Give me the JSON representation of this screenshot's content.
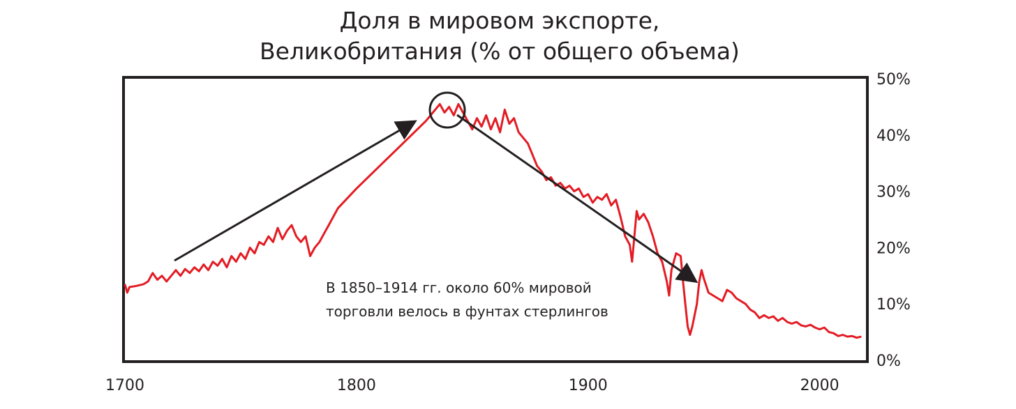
{
  "chart_data": {
    "type": "line",
    "title": "Доля в мировом экспорте,",
    "subtitle": "Великобритания (% от общего объема)",
    "xlabel": "",
    "ylabel": "",
    "xlim": [
      1700,
      2020
    ],
    "ylim": [
      0,
      50
    ],
    "x_ticks": [
      1700,
      1800,
      1900,
      2000
    ],
    "y_ticks": [
      "0%",
      "10%",
      "20%",
      "30%",
      "40%",
      "50%"
    ],
    "y_axis_position": "right",
    "grid": false,
    "line_color": "#e31b23",
    "annotation_color": "#231f20",
    "annotation_text": [
      "В 1850–1914 гг. около 60% мировой",
      "торговли велось в фунтах стерлингов"
    ],
    "series": [
      {
        "values": [
          [
            1700,
            13.5
          ],
          [
            1701,
            12.0
          ],
          [
            1702,
            13.0
          ],
          [
            1705,
            13.2
          ],
          [
            1708,
            13.5
          ],
          [
            1710,
            14.0
          ],
          [
            1712,
            15.5
          ],
          [
            1714,
            14.3
          ],
          [
            1716,
            15.0
          ],
          [
            1718,
            14.0
          ],
          [
            1720,
            15.0
          ],
          [
            1722,
            16.0
          ],
          [
            1724,
            15.0
          ],
          [
            1726,
            16.2
          ],
          [
            1728,
            15.5
          ],
          [
            1730,
            16.5
          ],
          [
            1732,
            15.8
          ],
          [
            1734,
            17.0
          ],
          [
            1736,
            16.0
          ],
          [
            1738,
            17.5
          ],
          [
            1740,
            16.8
          ],
          [
            1742,
            18.0
          ],
          [
            1744,
            16.5
          ],
          [
            1746,
            18.5
          ],
          [
            1748,
            17.5
          ],
          [
            1750,
            19.0
          ],
          [
            1752,
            18.0
          ],
          [
            1754,
            20.0
          ],
          [
            1756,
            19.0
          ],
          [
            1758,
            21.0
          ],
          [
            1760,
            20.5
          ],
          [
            1762,
            22.0
          ],
          [
            1764,
            21.0
          ],
          [
            1766,
            23.5
          ],
          [
            1768,
            21.5
          ],
          [
            1770,
            23.0
          ],
          [
            1772,
            24.0
          ],
          [
            1774,
            22.0
          ],
          [
            1776,
            21.0
          ],
          [
            1778,
            22.0
          ],
          [
            1780,
            18.5
          ],
          [
            1782,
            20.0
          ],
          [
            1784,
            21.0
          ],
          [
            1786,
            22.5
          ],
          [
            1788,
            24.0
          ],
          [
            1790,
            25.5
          ],
          [
            1792,
            27.0
          ],
          [
            1800,
            30.5
          ],
          [
            1810,
            34.5
          ],
          [
            1820,
            38.5
          ],
          [
            1830,
            42.5
          ],
          [
            1834,
            44.5
          ],
          [
            1836,
            45.5
          ],
          [
            1838,
            44.0
          ],
          [
            1840,
            45.0
          ],
          [
            1842,
            43.5
          ],
          [
            1844,
            45.5
          ],
          [
            1846,
            44.0
          ],
          [
            1848,
            42.5
          ],
          [
            1850,
            41.0
          ],
          [
            1852,
            43.0
          ],
          [
            1854,
            41.5
          ],
          [
            1856,
            43.5
          ],
          [
            1858,
            41.0
          ],
          [
            1860,
            43.0
          ],
          [
            1862,
            40.5
          ],
          [
            1864,
            44.5
          ],
          [
            1866,
            42.0
          ],
          [
            1868,
            43.0
          ],
          [
            1870,
            40.5
          ],
          [
            1872,
            39.5
          ],
          [
            1874,
            38.5
          ],
          [
            1876,
            36.5
          ],
          [
            1878,
            34.5
          ],
          [
            1880,
            33.5
          ],
          [
            1882,
            32.0
          ],
          [
            1884,
            32.5
          ],
          [
            1886,
            31.0
          ],
          [
            1888,
            31.5
          ],
          [
            1890,
            30.5
          ],
          [
            1892,
            31.0
          ],
          [
            1894,
            30.0
          ],
          [
            1896,
            30.5
          ],
          [
            1898,
            29.0
          ],
          [
            1900,
            29.5
          ],
          [
            1902,
            28.0
          ],
          [
            1904,
            29.0
          ],
          [
            1906,
            28.5
          ],
          [
            1908,
            29.5
          ],
          [
            1910,
            27.5
          ],
          [
            1912,
            28.5
          ],
          [
            1914,
            25.5
          ],
          [
            1916,
            22.0
          ],
          [
            1918,
            20.5
          ],
          [
            1919,
            17.5
          ],
          [
            1920,
            22.0
          ],
          [
            1921,
            26.5
          ],
          [
            1922,
            25.0
          ],
          [
            1924,
            26.0
          ],
          [
            1926,
            24.5
          ],
          [
            1928,
            22.0
          ],
          [
            1930,
            19.0
          ],
          [
            1932,
            17.5
          ],
          [
            1934,
            14.0
          ],
          [
            1935,
            11.5
          ],
          [
            1936,
            16.0
          ],
          [
            1938,
            19.0
          ],
          [
            1940,
            18.5
          ],
          [
            1941,
            14.0
          ],
          [
            1942,
            10.0
          ],
          [
            1943,
            6.0
          ],
          [
            1944,
            4.5
          ],
          [
            1945,
            6.0
          ],
          [
            1946,
            8.0
          ],
          [
            1947,
            10.0
          ],
          [
            1948,
            14.0
          ],
          [
            1949,
            16.0
          ],
          [
            1950,
            14.5
          ],
          [
            1952,
            12.0
          ],
          [
            1954,
            11.5
          ],
          [
            1956,
            11.0
          ],
          [
            1958,
            10.5
          ],
          [
            1960,
            12.5
          ],
          [
            1962,
            12.0
          ],
          [
            1964,
            11.0
          ],
          [
            1966,
            10.5
          ],
          [
            1968,
            10.0
          ],
          [
            1970,
            9.0
          ],
          [
            1972,
            8.5
          ],
          [
            1974,
            7.5
          ],
          [
            1976,
            8.0
          ],
          [
            1978,
            7.5
          ],
          [
            1980,
            7.8
          ],
          [
            1982,
            7.0
          ],
          [
            1984,
            7.5
          ],
          [
            1986,
            6.8
          ],
          [
            1988,
            6.5
          ],
          [
            1990,
            6.8
          ],
          [
            1992,
            6.2
          ],
          [
            1994,
            6.0
          ],
          [
            1996,
            6.3
          ],
          [
            1998,
            5.8
          ],
          [
            2000,
            5.5
          ],
          [
            2002,
            5.8
          ],
          [
            2004,
            5.0
          ],
          [
            2006,
            4.8
          ],
          [
            2008,
            4.3
          ],
          [
            2010,
            4.5
          ],
          [
            2012,
            4.2
          ],
          [
            2014,
            4.3
          ],
          [
            2016,
            4.0
          ],
          [
            2018,
            4.2
          ]
        ]
      }
    ]
  }
}
